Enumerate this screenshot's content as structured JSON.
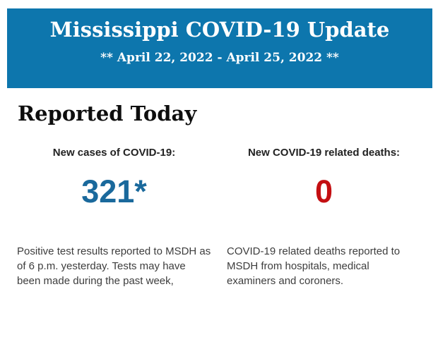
{
  "banner": {
    "title": "Mississippi COVID-19 Update",
    "date_range": "** April 22, 2022 - April 25, 2022 **"
  },
  "section": {
    "title": "Reported Today"
  },
  "stats": [
    {
      "label": "New cases of COVID-19:",
      "value": "321*",
      "description": "Positive test results reported to MSDH as of 6 p.m. yesterday. Tests may have been made during the past week,"
    },
    {
      "label": "New COVID-19 related deaths:",
      "value": "0",
      "description": "COVID-19 related deaths reported to MSDH from hospitals, medical examiners and coroners."
    }
  ],
  "colors": {
    "banner-bg": "#0d76ad",
    "banner-text": "#ffffff",
    "cases-value": "#1a699c",
    "deaths-value": "#c40f12",
    "heading-text": "#0e0e0e",
    "label-text": "#222222",
    "body-text": "#3d3d3d",
    "page-bg": "#ffffff"
  }
}
